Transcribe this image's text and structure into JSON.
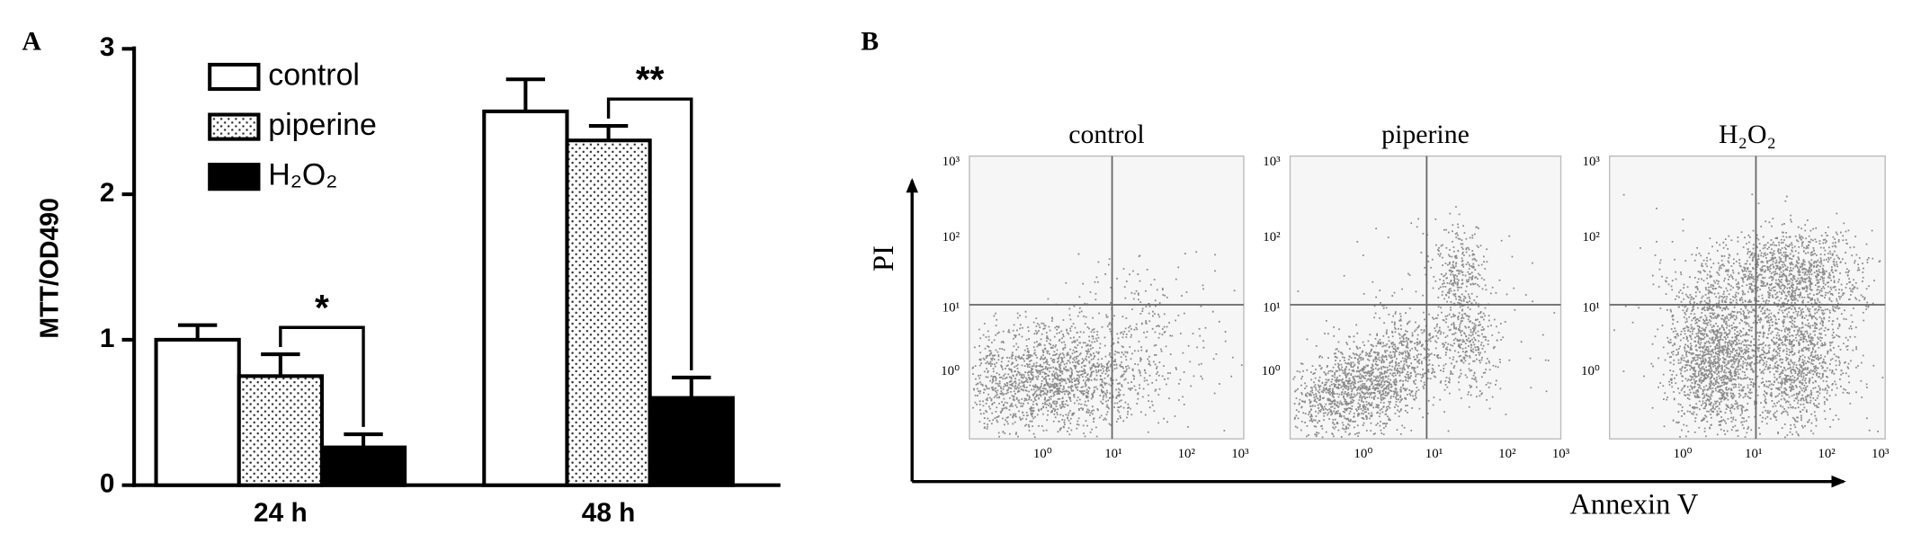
{
  "chart_data": {
    "type": "bar",
    "panel_label": "A",
    "y_label": "MTT/OD490",
    "categories": [
      "24 h",
      "48 h"
    ],
    "series": [
      {
        "name": "control",
        "color": "#ffffff",
        "pattern": "none",
        "values": [
          1.0,
          2.57
        ],
        "errors": [
          0.1,
          0.22
        ]
      },
      {
        "name": "piperine",
        "color": "#ffffff",
        "pattern": "dots",
        "values": [
          0.75,
          2.37
        ],
        "errors": [
          0.15,
          0.1
        ]
      },
      {
        "name": "H₂O₂",
        "color": "#000000",
        "pattern": "none",
        "values": [
          0.26,
          0.6
        ],
        "errors": [
          0.09,
          0.14
        ]
      }
    ],
    "annotations": [
      "*",
      "**"
    ],
    "ylim": [
      0,
      3
    ],
    "yticks": [
      0,
      1,
      2,
      3
    ],
    "grid": false,
    "legend": "top-left"
  },
  "panel_b": {
    "label": "B",
    "y_label": "PI",
    "x_label": "Annexin V",
    "plots": [
      {
        "title": "control"
      },
      {
        "title": "piperine"
      },
      {
        "title": "H₂O₂"
      }
    ],
    "y_tick_labels": [
      "10³",
      "10²",
      "10¹",
      "10⁰"
    ],
    "x_tick_labels": [
      "10⁰",
      "10¹",
      "10²",
      "10³"
    ]
  }
}
